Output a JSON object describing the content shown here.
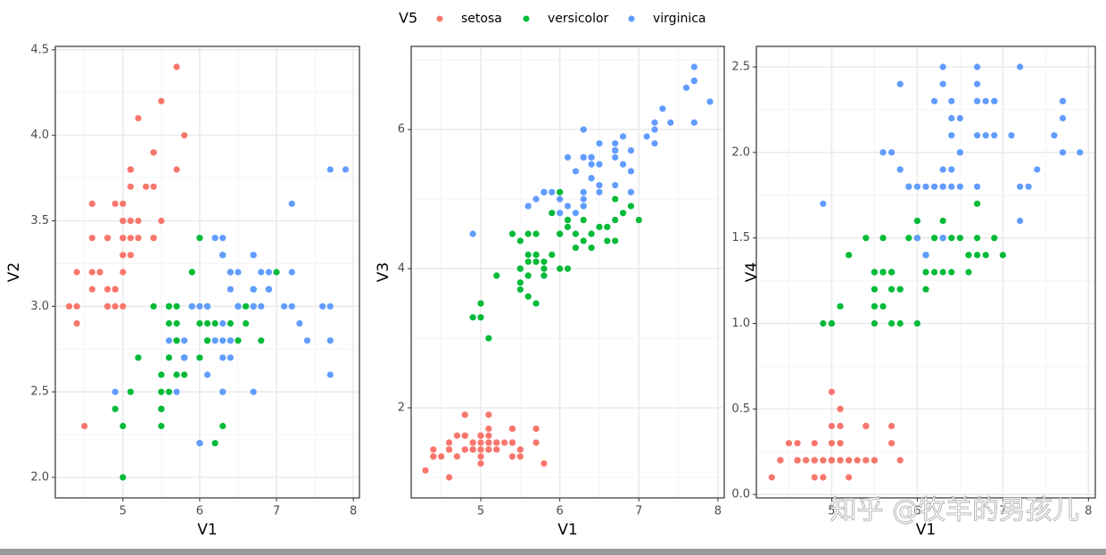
{
  "legend": {
    "title": "V5",
    "entries": [
      {
        "name": "setosa",
        "color": "#F8766D"
      },
      {
        "name": "versicolor",
        "color": "#00BA38"
      },
      {
        "name": "virginica",
        "color": "#619CFF"
      }
    ]
  },
  "watermark": "知乎 @牧羊的男孩儿",
  "chart_data": [
    {
      "type": "scatter",
      "xlabel": "V1",
      "ylabel": "V2",
      "xlim": [
        4.12,
        8.08
      ],
      "ylim": [
        1.88,
        4.52
      ],
      "xticks": [
        5,
        6,
        7,
        8
      ],
      "yticks": [
        {
          "value": 2.0,
          "label": "2.0"
        },
        {
          "value": 2.5,
          "label": "2.5"
        },
        {
          "value": 3.0,
          "label": "3.0"
        },
        {
          "value": 3.5,
          "label": "3.5"
        },
        {
          "value": 4.0,
          "label": "4.0"
        },
        {
          "value": 4.5,
          "label": "4.5"
        }
      ],
      "grid": true,
      "series": [
        {
          "x": [
            5.1,
            4.9,
            4.7,
            4.6,
            5.0,
            5.4,
            4.6,
            5.0,
            4.4,
            4.9,
            5.4,
            4.8,
            4.8,
            4.3,
            5.8,
            5.7,
            5.4,
            5.1,
            5.7,
            5.1,
            5.4,
            5.1,
            4.6,
            5.1,
            4.8,
            5.0,
            5.0,
            5.2,
            5.2,
            4.7,
            4.8,
            5.4,
            5.2,
            5.5,
            4.9,
            5.0,
            5.5,
            4.9,
            4.4,
            5.1,
            5.0,
            4.5,
            4.4,
            5.0,
            5.1,
            4.8,
            5.1,
            4.6,
            5.3,
            5.0
          ],
          "values": [
            3.5,
            3.0,
            3.2,
            3.1,
            3.6,
            3.9,
            3.4,
            3.4,
            2.9,
            3.1,
            3.7,
            3.4,
            3.0,
            3.0,
            4.0,
            4.4,
            3.9,
            3.5,
            3.8,
            3.8,
            3.4,
            3.7,
            3.6,
            3.3,
            3.4,
            3.0,
            3.4,
            3.5,
            3.4,
            3.2,
            3.1,
            3.4,
            4.1,
            4.2,
            3.1,
            3.2,
            3.5,
            3.6,
            3.0,
            3.4,
            3.5,
            2.3,
            3.2,
            3.5,
            3.8,
            3.0,
            3.8,
            3.2,
            3.7,
            3.3
          ]
        },
        {
          "x": [
            7.0,
            6.4,
            6.9,
            5.5,
            6.5,
            5.7,
            6.3,
            4.9,
            6.6,
            5.2,
            5.0,
            5.9,
            6.0,
            6.1,
            5.6,
            6.7,
            5.6,
            5.8,
            6.2,
            5.6,
            5.9,
            6.1,
            6.3,
            6.1,
            6.4,
            6.6,
            6.8,
            6.7,
            6.0,
            5.7,
            5.5,
            5.5,
            5.8,
            6.0,
            5.4,
            6.0,
            6.7,
            6.3,
            5.6,
            5.5,
            5.5,
            6.1,
            5.8,
            5.0,
            5.6,
            5.7,
            5.7,
            6.2,
            5.1,
            5.7
          ],
          "values": [
            3.2,
            3.2,
            3.1,
            2.3,
            2.8,
            2.8,
            3.3,
            2.4,
            2.9,
            2.7,
            2.0,
            3.0,
            2.2,
            2.9,
            2.9,
            3.1,
            3.0,
            2.7,
            2.2,
            2.5,
            3.2,
            2.8,
            2.5,
            2.8,
            2.9,
            3.0,
            2.8,
            3.0,
            2.9,
            2.6,
            2.4,
            2.4,
            2.7,
            2.7,
            3.0,
            3.4,
            3.1,
            2.3,
            3.0,
            2.5,
            2.6,
            3.0,
            2.6,
            2.3,
            2.7,
            3.0,
            2.9,
            2.9,
            2.5,
            2.8
          ]
        },
        {
          "x": [
            6.3,
            5.8,
            7.1,
            6.3,
            6.5,
            7.6,
            4.9,
            7.3,
            6.7,
            7.2,
            6.5,
            6.4,
            6.8,
            5.7,
            5.8,
            6.4,
            6.5,
            7.7,
            7.7,
            6.0,
            6.9,
            5.6,
            7.7,
            6.3,
            6.7,
            7.2,
            6.2,
            6.1,
            6.4,
            7.2,
            7.4,
            7.9,
            6.4,
            6.3,
            6.1,
            7.7,
            6.3,
            6.4,
            6.0,
            6.9,
            6.7,
            6.9,
            5.8,
            6.8,
            6.7,
            6.7,
            6.3,
            6.5,
            6.2,
            5.9
          ],
          "values": [
            3.3,
            2.7,
            3.0,
            2.9,
            3.0,
            3.0,
            2.5,
            2.9,
            2.5,
            3.6,
            3.2,
            2.7,
            3.0,
            2.5,
            2.8,
            3.2,
            3.0,
            3.8,
            2.6,
            2.2,
            3.2,
            2.8,
            2.8,
            2.7,
            3.3,
            3.2,
            2.8,
            3.0,
            2.8,
            3.0,
            2.8,
            3.8,
            2.8,
            2.8,
            2.6,
            3.0,
            3.4,
            3.1,
            3.0,
            3.1,
            3.1,
            3.1,
            2.7,
            3.2,
            3.3,
            3.0,
            2.5,
            3.0,
            3.4,
            3.0
          ]
        }
      ]
    },
    {
      "type": "scatter",
      "xlabel": "V1",
      "ylabel": "V3",
      "xlim": [
        4.12,
        8.08
      ],
      "ylim": [
        0.705,
        7.195
      ],
      "xticks": [
        5,
        6,
        7,
        8
      ],
      "yticks": [
        2,
        4,
        6
      ],
      "grid": true,
      "series": [
        {
          "x": [
            5.1,
            4.9,
            4.7,
            4.6,
            5.0,
            5.4,
            4.6,
            5.0,
            4.4,
            4.9,
            5.4,
            4.8,
            4.8,
            4.3,
            5.8,
            5.7,
            5.4,
            5.1,
            5.7,
            5.1,
            5.4,
            5.1,
            4.6,
            5.1,
            4.8,
            5.0,
            5.0,
            5.2,
            5.2,
            4.7,
            4.8,
            5.4,
            5.2,
            5.5,
            4.9,
            5.0,
            5.5,
            4.9,
            4.4,
            5.1,
            5.0,
            4.5,
            4.4,
            5.0,
            5.1,
            4.8,
            5.1,
            4.6,
            5.3,
            5.0
          ],
          "values": [
            1.4,
            1.4,
            1.3,
            1.5,
            1.4,
            1.7,
            1.4,
            1.5,
            1.4,
            1.5,
            1.5,
            1.6,
            1.4,
            1.1,
            1.2,
            1.5,
            1.3,
            1.4,
            1.7,
            1.5,
            1.7,
            1.5,
            1.0,
            1.7,
            1.9,
            1.6,
            1.6,
            1.5,
            1.4,
            1.6,
            1.6,
            1.5,
            1.5,
            1.4,
            1.5,
            1.2,
            1.3,
            1.4,
            1.3,
            1.5,
            1.3,
            1.3,
            1.3,
            1.6,
            1.9,
            1.4,
            1.6,
            1.4,
            1.5,
            1.4
          ]
        },
        {
          "x": [
            7.0,
            6.4,
            6.9,
            5.5,
            6.5,
            5.7,
            6.3,
            4.9,
            6.6,
            5.2,
            5.0,
            5.9,
            6.0,
            6.1,
            5.6,
            6.7,
            5.6,
            5.8,
            6.2,
            5.6,
            5.9,
            6.1,
            6.3,
            6.1,
            6.4,
            6.6,
            6.8,
            6.7,
            6.0,
            5.7,
            5.5,
            5.5,
            5.8,
            6.0,
            5.4,
            6.0,
            6.7,
            6.3,
            5.6,
            5.5,
            5.5,
            6.1,
            5.8,
            5.0,
            5.6,
            5.7,
            5.7,
            6.2,
            5.1,
            5.7
          ],
          "values": [
            4.7,
            4.5,
            4.9,
            4.0,
            4.6,
            4.5,
            4.7,
            3.3,
            4.6,
            3.9,
            3.5,
            4.2,
            4.0,
            4.7,
            3.6,
            4.4,
            4.5,
            4.1,
            4.5,
            3.9,
            4.8,
            4.0,
            4.9,
            4.7,
            4.3,
            4.4,
            4.8,
            5.0,
            4.5,
            3.5,
            3.8,
            3.7,
            3.9,
            5.1,
            4.5,
            4.5,
            4.7,
            4.4,
            4.1,
            4.0,
            4.4,
            4.6,
            4.0,
            3.3,
            4.2,
            4.2,
            4.2,
            4.3,
            3.0,
            4.1
          ]
        },
        {
          "x": [
            6.3,
            5.8,
            7.1,
            6.3,
            6.5,
            7.6,
            4.9,
            7.3,
            6.7,
            7.2,
            6.5,
            6.4,
            6.8,
            5.7,
            5.8,
            6.4,
            6.5,
            7.7,
            7.7,
            6.0,
            6.9,
            5.6,
            7.7,
            6.3,
            6.7,
            7.2,
            6.2,
            6.1,
            6.4,
            7.2,
            7.4,
            7.9,
            6.4,
            6.3,
            6.1,
            7.7,
            6.3,
            6.4,
            6.0,
            6.9,
            6.7,
            6.9,
            5.8,
            6.8,
            6.7,
            6.7,
            6.3,
            6.5,
            6.2,
            5.9
          ],
          "values": [
            6.0,
            5.1,
            5.9,
            5.6,
            5.8,
            6.6,
            4.5,
            6.3,
            5.8,
            6.1,
            5.1,
            5.3,
            5.5,
            5.0,
            5.1,
            5.3,
            5.5,
            6.7,
            6.9,
            5.0,
            5.7,
            4.9,
            6.7,
            4.9,
            5.7,
            6.0,
            4.8,
            4.9,
            5.6,
            5.8,
            6.1,
            6.4,
            5.6,
            5.1,
            5.6,
            6.1,
            5.6,
            5.5,
            4.8,
            5.4,
            5.6,
            5.1,
            5.1,
            5.9,
            5.7,
            5.2,
            5.0,
            5.2,
            5.4,
            5.1
          ]
        }
      ]
    },
    {
      "type": "scatter",
      "xlabel": "V1",
      "ylabel": "V4",
      "xlim": [
        4.12,
        8.08
      ],
      "ylim": [
        -0.02,
        2.62
      ],
      "xticks": [
        5,
        6,
        7,
        8
      ],
      "yticks": [
        {
          "value": 0.0,
          "label": "0.0"
        },
        {
          "value": 0.5,
          "label": "0.5"
        },
        {
          "value": 1.0,
          "label": "1.0"
        },
        {
          "value": 1.5,
          "label": "1.5"
        },
        {
          "value": 2.0,
          "label": "2.0"
        },
        {
          "value": 2.5,
          "label": "2.5"
        }
      ],
      "grid": true,
      "series": [
        {
          "x": [
            5.1,
            4.9,
            4.7,
            4.6,
            5.0,
            5.4,
            4.6,
            5.0,
            4.4,
            4.9,
            5.4,
            4.8,
            4.8,
            4.3,
            5.8,
            5.7,
            5.4,
            5.1,
            5.7,
            5.1,
            5.4,
            5.1,
            4.6,
            5.1,
            4.8,
            5.0,
            5.0,
            5.2,
            5.2,
            4.7,
            4.8,
            5.4,
            5.2,
            5.5,
            4.9,
            5.0,
            5.5,
            4.9,
            4.4,
            5.1,
            5.0,
            4.5,
            4.4,
            5.0,
            5.1,
            4.8,
            5.1,
            4.6,
            5.3,
            5.0
          ],
          "values": [
            0.2,
            0.2,
            0.2,
            0.2,
            0.2,
            0.4,
            0.3,
            0.2,
            0.2,
            0.1,
            0.2,
            0.2,
            0.1,
            0.1,
            0.2,
            0.4,
            0.4,
            0.3,
            0.3,
            0.3,
            0.2,
            0.4,
            0.2,
            0.5,
            0.2,
            0.2,
            0.4,
            0.2,
            0.2,
            0.2,
            0.2,
            0.4,
            0.1,
            0.2,
            0.2,
            0.2,
            0.2,
            0.1,
            0.2,
            0.2,
            0.3,
            0.3,
            0.2,
            0.6,
            0.4,
            0.3,
            0.2,
            0.2,
            0.2,
            0.2
          ]
        },
        {
          "x": [
            7.0,
            6.4,
            6.9,
            5.5,
            6.5,
            5.7,
            6.3,
            4.9,
            6.6,
            5.2,
            5.0,
            5.9,
            6.0,
            6.1,
            5.6,
            6.7,
            5.6,
            5.8,
            6.2,
            5.6,
            5.9,
            6.1,
            6.3,
            6.1,
            6.4,
            6.6,
            6.8,
            6.7,
            6.0,
            5.7,
            5.5,
            5.5,
            5.8,
            6.0,
            5.4,
            6.0,
            6.7,
            6.3,
            5.6,
            5.5,
            5.5,
            6.1,
            5.8,
            5.0,
            5.6,
            5.7,
            5.7,
            6.2,
            5.1,
            5.7
          ],
          "values": [
            1.4,
            1.5,
            1.5,
            1.3,
            1.5,
            1.3,
            1.6,
            1.0,
            1.3,
            1.4,
            1.0,
            1.5,
            1.0,
            1.4,
            1.3,
            1.4,
            1.5,
            1.0,
            1.5,
            1.1,
            1.8,
            1.3,
            1.5,
            1.2,
            1.3,
            1.4,
            1.4,
            1.7,
            1.5,
            1.0,
            1.1,
            1.0,
            1.2,
            1.6,
            1.5,
            1.6,
            1.5,
            1.3,
            1.3,
            1.3,
            1.2,
            1.4,
            1.2,
            1.0,
            1.3,
            1.2,
            1.3,
            1.3,
            1.1,
            1.3
          ]
        },
        {
          "x": [
            6.3,
            5.8,
            7.1,
            6.3,
            6.5,
            7.6,
            4.9,
            7.3,
            6.7,
            7.2,
            6.5,
            6.4,
            6.8,
            5.7,
            5.8,
            6.4,
            6.5,
            7.7,
            7.7,
            6.0,
            6.9,
            5.6,
            7.7,
            6.3,
            6.7,
            7.2,
            6.2,
            6.1,
            6.4,
            7.2,
            7.4,
            7.9,
            6.4,
            6.3,
            6.1,
            7.7,
            6.3,
            6.4,
            6.0,
            6.9,
            6.7,
            6.9,
            5.8,
            6.8,
            6.7,
            6.7,
            6.3,
            6.5,
            6.2,
            5.9
          ],
          "values": [
            2.5,
            1.9,
            2.1,
            1.8,
            2.2,
            2.1,
            1.7,
            1.8,
            1.8,
            2.5,
            2.0,
            1.9,
            2.1,
            2.0,
            2.4,
            2.3,
            1.8,
            2.2,
            2.3,
            1.5,
            2.3,
            2.0,
            2.0,
            1.8,
            2.1,
            1.8,
            1.8,
            1.8,
            2.1,
            1.6,
            1.9,
            2.0,
            2.2,
            1.5,
            1.4,
            2.3,
            2.4,
            1.8,
            1.8,
            2.1,
            2.4,
            2.3,
            1.9,
            2.3,
            2.5,
            2.3,
            1.9,
            2.0,
            2.3,
            1.8
          ]
        }
      ]
    }
  ]
}
